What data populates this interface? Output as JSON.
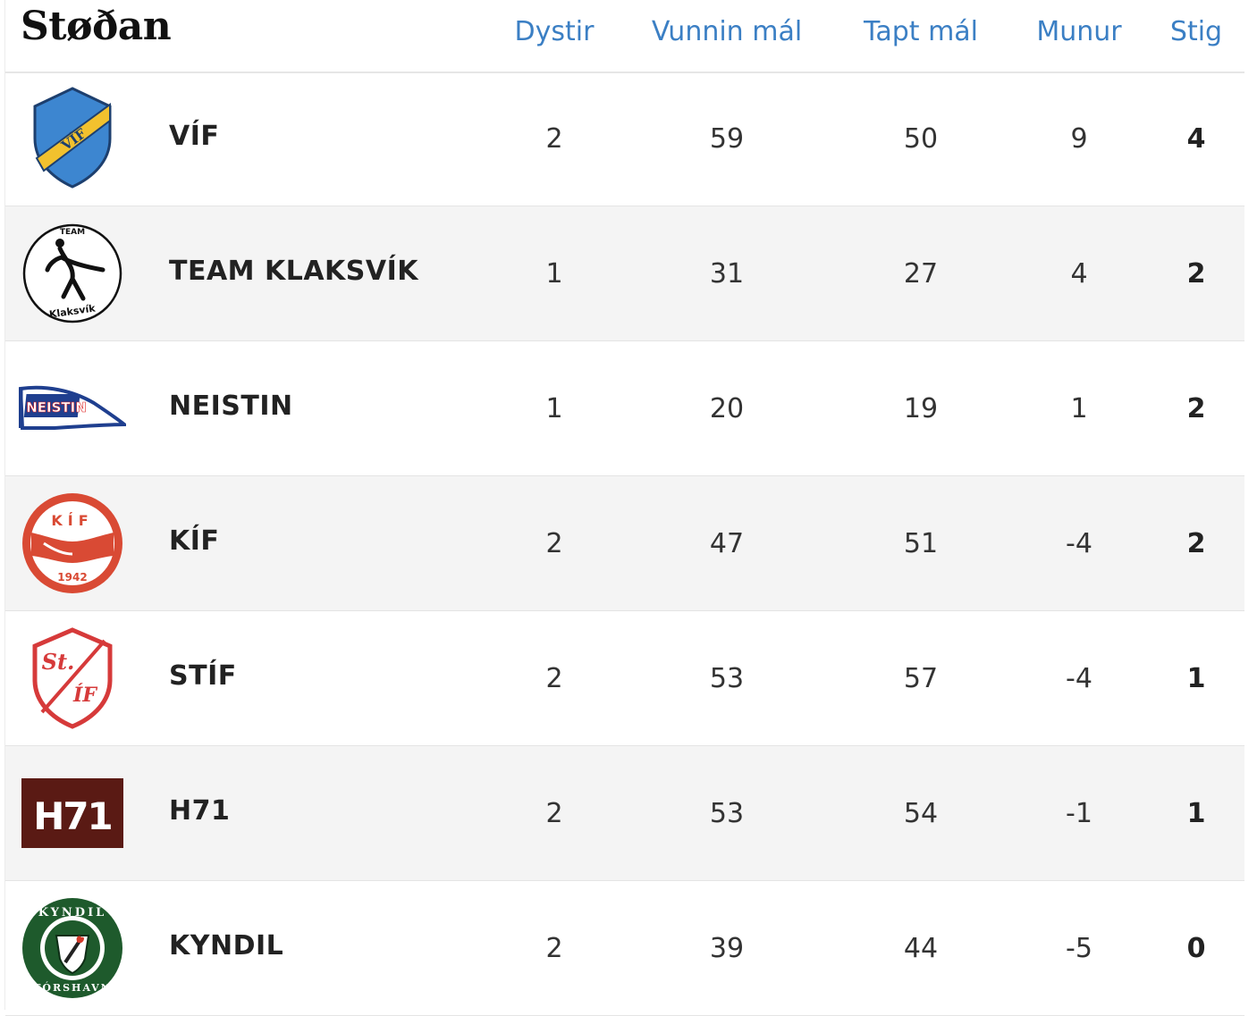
{
  "title": "Støðan",
  "columns": {
    "dystir": "Dystir",
    "vunnin": "Vunnin mál",
    "tapt": "Tapt mál",
    "munur": "Munur",
    "stig": "Stig"
  },
  "colors": {
    "header_accent": "#3b7fc4",
    "row_alt_bg": "#f4f4f4"
  },
  "rows": [
    {
      "team": "VÍF",
      "logo": "vif-shield-logo",
      "logo_text": "VÍF",
      "dystir": "2",
      "vunnin": "59",
      "tapt": "50",
      "munur": "9",
      "stig": "4"
    },
    {
      "team": "TEAM KLAKSVÍK",
      "logo": "team-klaksvik-logo",
      "logo_text_top": "TEAM",
      "logo_text_bottom": "Klaksvík",
      "dystir": "1",
      "vunnin": "31",
      "tapt": "27",
      "munur": "4",
      "stig": "2"
    },
    {
      "team": "NEISTIN",
      "logo": "neistin-pennant-logo",
      "logo_text": "NEISTIN",
      "dystir": "1",
      "vunnin": "20",
      "tapt": "19",
      "munur": "1",
      "stig": "2"
    },
    {
      "team": "KÍF",
      "logo": "kif-circle-logo",
      "logo_text_top": "KÍF",
      "logo_text_bottom": "1942",
      "dystir": "2",
      "vunnin": "47",
      "tapt": "51",
      "munur": "-4",
      "stig": "2"
    },
    {
      "team": "STÍF",
      "logo": "stif-shield-logo",
      "logo_text_top": "St.",
      "logo_text_bottom": "ÍF",
      "dystir": "2",
      "vunnin": "53",
      "tapt": "57",
      "munur": "-4",
      "stig": "1"
    },
    {
      "team": "H71",
      "logo": "h71-block-logo",
      "logo_text": "H71",
      "dystir": "2",
      "vunnin": "53",
      "tapt": "54",
      "munur": "-1",
      "stig": "1"
    },
    {
      "team": "KYNDIL",
      "logo": "kyndil-circle-logo",
      "logo_text_top": "KYNDIL",
      "logo_text_bottom": "TÓRSHAVN",
      "dystir": "2",
      "vunnin": "39",
      "tapt": "44",
      "munur": "-5",
      "stig": "0"
    }
  ]
}
